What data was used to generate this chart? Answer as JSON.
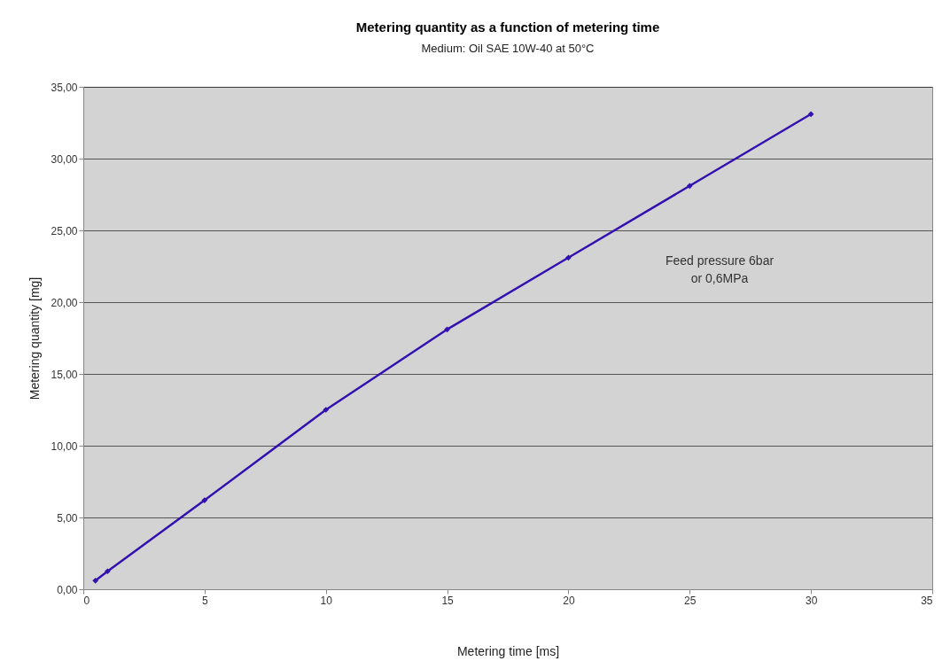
{
  "chart_data": {
    "type": "line",
    "title": "Metering quantity as a function of metering time",
    "subtitle": "Medium: Oil SAE 10W-40 at 50°C",
    "xlabel": "Metering time [ms]",
    "ylabel": "Metering quantity [mg]",
    "x": [
      0.5,
      1,
      5,
      10,
      15,
      20,
      25,
      30
    ],
    "series": [
      {
        "color": "#3311b0",
        "values": [
          0.6,
          1.25,
          6.2,
          12.5,
          18.1,
          23.1,
          28.1,
          33.1
        ]
      }
    ],
    "xlim": [
      0,
      35
    ],
    "xticks": [
      0,
      5,
      10,
      15,
      20,
      25,
      30,
      35
    ],
    "ylim": [
      0,
      35
    ],
    "yticks": [
      {
        "value": 0,
        "label": "0,00"
      },
      {
        "value": 5,
        "label": "5,00"
      },
      {
        "value": 10,
        "label": "10,00"
      },
      {
        "value": 15,
        "label": "15,00"
      },
      {
        "value": 20,
        "label": "20,00"
      },
      {
        "value": 25,
        "label": "25,00"
      },
      {
        "value": 30,
        "label": "30,00"
      },
      {
        "value": 35,
        "label": "35,00"
      }
    ],
    "grid": "y",
    "marker": "diamond",
    "line_style": "solid",
    "annotations": [
      "Feed pressure 6bar\nor 0,6MPa"
    ]
  }
}
